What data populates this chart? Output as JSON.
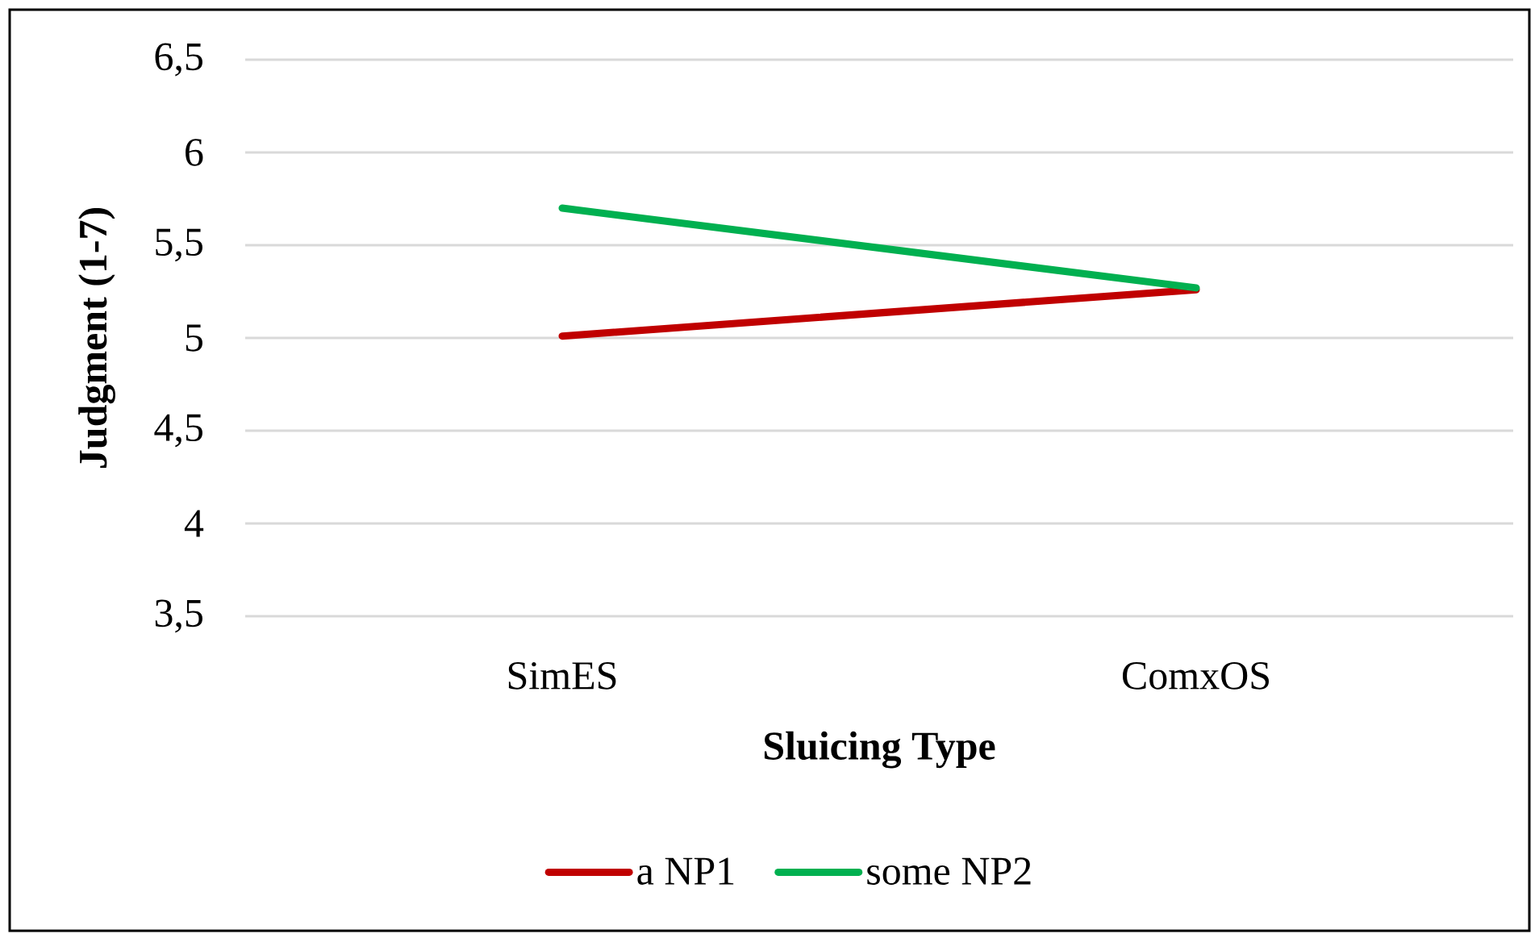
{
  "chart_data": {
    "type": "line",
    "xlabel": "Sluicing Type",
    "ylabel": "Judgment (1-7)",
    "categories": [
      "SimES",
      "ComxOS"
    ],
    "series": [
      {
        "name": "a NP1",
        "color": "#c00000",
        "values": [
          5.01,
          5.26
        ]
      },
      {
        "name": "some NP2",
        "color": "#00b050",
        "values": [
          5.7,
          5.27
        ]
      }
    ],
    "ylim": [
      3.5,
      6.5
    ],
    "yticks": [
      {
        "value": 3.5,
        "label": "3,5"
      },
      4,
      {
        "value": 4.5,
        "label": "4,5"
      },
      5,
      {
        "value": 5.5,
        "label": "5,5"
      },
      6,
      {
        "value": 6.5,
        "label": "6,5"
      }
    ],
    "grid": "y",
    "legend": "bottom",
    "line_style": "solid"
  }
}
